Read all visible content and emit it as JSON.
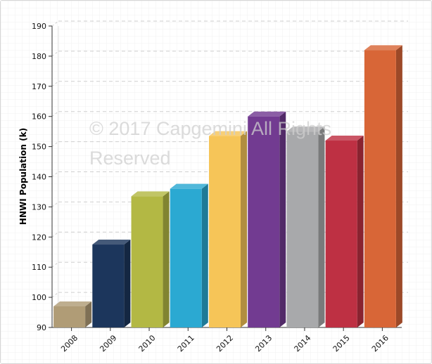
{
  "chart_data": {
    "type": "bar",
    "title": "",
    "xlabel": "",
    "ylabel": "HNWI Population (k)",
    "ylim": [
      90,
      190
    ],
    "yticks": [
      90,
      100,
      110,
      120,
      130,
      140,
      150,
      160,
      170,
      180,
      190
    ],
    "grid": true,
    "categories": [
      "2008",
      "2009",
      "2010",
      "2011",
      "2012",
      "2013",
      "2014",
      "2015",
      "2016"
    ],
    "values": [
      97,
      117.5,
      133.5,
      136,
      153.5,
      160,
      155,
      152,
      182
    ],
    "colors": [
      "#b09c76",
      "#1c365c",
      "#b3b844",
      "#2ba9d2",
      "#f6c558",
      "#723b91",
      "#a8a9ab",
      "#be3043",
      "#d86637"
    ],
    "watermark": [
      "© 2017 Capgemini All Rights",
      "Reserved"
    ]
  }
}
